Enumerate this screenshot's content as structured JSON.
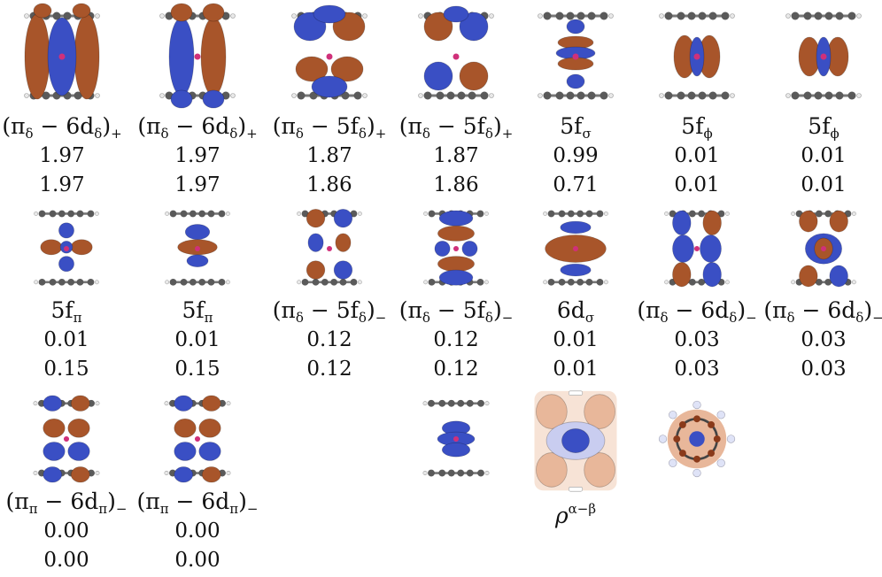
{
  "colors": {
    "positive_lobe": "#3a4fc4",
    "negative_lobe": "#a8552a",
    "carbon": "#5a5a5a",
    "hydrogen": "#e8e8e8",
    "metal": "#d0307a",
    "density_lobe": "#e8b79a",
    "density_contour": "#7a86d6"
  },
  "cells": [
    {
      "label_main": "(π",
      "label_sub": "δ",
      "label_mid": " − 6d",
      "label_sub2": "δ",
      "label_end": ")",
      "label_sub3": "+",
      "occ1": "1.97",
      "occ2": "1.97",
      "shape": "d-delta-a"
    },
    {
      "label_main": "(π",
      "label_sub": "δ",
      "label_mid": " − 6d",
      "label_sub2": "δ",
      "label_end": ")",
      "label_sub3": "+",
      "occ1": "1.97",
      "occ2": "1.97",
      "shape": "d-delta-b"
    },
    {
      "label_main": "(π",
      "label_sub": "δ",
      "label_mid": " − 5f",
      "label_sub2": "δ",
      "label_end": ")",
      "label_sub3": "+",
      "occ1": "1.87",
      "occ2": "1.86",
      "shape": "f-delta-a"
    },
    {
      "label_main": "(π",
      "label_sub": "δ",
      "label_mid": " − 5f",
      "label_sub2": "δ",
      "label_end": ")",
      "label_sub3": "+",
      "occ1": "1.87",
      "occ2": "1.86",
      "shape": "f-delta-b"
    },
    {
      "label_main": "5f",
      "label_sub": "σ",
      "label_mid": "",
      "label_sub2": "",
      "label_end": "",
      "label_sub3": "",
      "occ1": "0.99",
      "occ2": "0.71",
      "shape": "f-sigma"
    },
    {
      "label_main": "5f",
      "label_sub": "ϕ",
      "label_mid": "",
      "label_sub2": "",
      "label_end": "",
      "label_sub3": "",
      "occ1": "0.01",
      "occ2": "0.01",
      "shape": "f-phi-a"
    },
    {
      "label_main": "5f",
      "label_sub": "ϕ",
      "label_mid": "",
      "label_sub2": "",
      "label_end": "",
      "label_sub3": "",
      "occ1": "0.01",
      "occ2": "0.01",
      "shape": "f-phi-b"
    },
    {
      "label_main": "5f",
      "label_sub": "π",
      "label_mid": "",
      "label_sub2": "",
      "label_end": "",
      "label_sub3": "",
      "occ1": "0.01",
      "occ2": "0.15",
      "shape": "f-pi-a"
    },
    {
      "label_main": "5f",
      "label_sub": "π",
      "label_mid": "",
      "label_sub2": "",
      "label_end": "",
      "label_sub3": "",
      "occ1": "0.01",
      "occ2": "0.15",
      "shape": "f-pi-b"
    },
    {
      "label_main": "(π",
      "label_sub": "δ",
      "label_mid": " − 5f",
      "label_sub2": "δ",
      "label_end": ")",
      "label_sub3": "−",
      "occ1": "0.12",
      "occ2": "0.12",
      "shape": "f-delta-c"
    },
    {
      "label_main": "(π",
      "label_sub": "δ",
      "label_mid": " − 5f",
      "label_sub2": "δ",
      "label_end": ")",
      "label_sub3": "−",
      "occ1": "0.12",
      "occ2": "0.12",
      "shape": "f-delta-d"
    },
    {
      "label_main": "6d",
      "label_sub": "σ",
      "label_mid": "",
      "label_sub2": "",
      "label_end": "",
      "label_sub3": "",
      "occ1": "0.01",
      "occ2": "0.01",
      "shape": "d-sigma"
    },
    {
      "label_main": "(π",
      "label_sub": "δ",
      "label_mid": " − 6d",
      "label_sub2": "δ",
      "label_end": ")",
      "label_sub3": "−",
      "occ1": "0.03",
      "occ2": "0.03",
      "shape": "d-delta-c"
    },
    {
      "label_main": "(π",
      "label_sub": "δ",
      "label_mid": " − 6d",
      "label_sub2": "δ",
      "label_end": ")",
      "label_sub3": "−",
      "occ1": "0.03",
      "occ2": "0.03",
      "shape": "d-delta-d"
    },
    {
      "label_main": "(π",
      "label_sub": "π",
      "label_mid": " − 6d",
      "label_sub2": "π",
      "label_end": ")",
      "label_sub3": "−",
      "occ1": "0.00",
      "occ2": "0.00",
      "shape": "d-pi-a"
    },
    {
      "label_main": "(π",
      "label_sub": "π",
      "label_mid": " − 6d",
      "label_sub2": "π",
      "label_end": ")",
      "label_sub3": "−",
      "occ1": "0.00",
      "occ2": "0.00",
      "shape": "d-pi-b"
    },
    {
      "label_main": "",
      "label_sub": "",
      "label_mid": "",
      "label_sub2": "",
      "label_end": "",
      "label_sub3": "",
      "occ1": "",
      "occ2": "",
      "shape": "sigma-small"
    },
    {
      "label_main": "ρ",
      "label_sub": "",
      "label_sup": "α−β",
      "label_mid": "",
      "label_sub2": "",
      "label_end": "",
      "label_sub3": "",
      "occ1": "",
      "occ2": "",
      "shape": "spin-density-side"
    },
    {
      "label_main": "",
      "label_sub": "",
      "label_mid": "",
      "label_sub2": "",
      "label_end": "",
      "label_sub3": "",
      "occ1": "",
      "occ2": "",
      "shape": "spin-density-top"
    }
  ]
}
